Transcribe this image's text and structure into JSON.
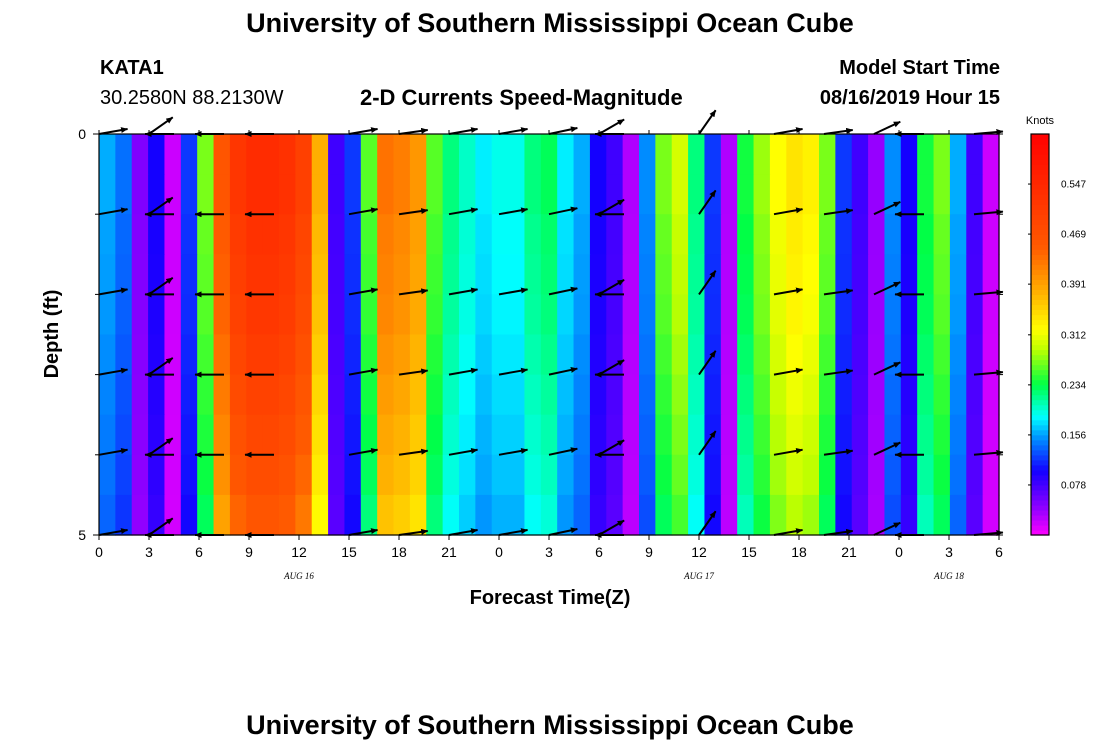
{
  "page": {
    "title_top": "University of Southern Mississippi Ocean Cube",
    "title_bottom": "University of Southern Mississippi Ocean Cube",
    "station": "KATA1",
    "coords": "30.2580N 88.2130W",
    "plot_title": "2-D Currents Speed-Magnitude",
    "model_start_label": "Model Start Time",
    "model_start_value": "08/16/2019 Hour 15"
  },
  "chart_data": {
    "type": "heatmap",
    "title": "2-D Currents Speed-Magnitude",
    "xlabel": "Forecast Time(Z)",
    "ylabel": "Depth (ft)",
    "x_tick_labels": [
      "0",
      "3",
      "6",
      "9",
      "12",
      "15",
      "18",
      "21",
      "0",
      "3",
      "6",
      "9",
      "12",
      "15",
      "18",
      "21",
      "0",
      "3",
      "6"
    ],
    "x_range_hours": [
      0,
      54
    ],
    "date_labels": [
      {
        "label": "AUG 16",
        "hour": 12
      },
      {
        "label": "AUG 17",
        "hour": 36
      },
      {
        "label": "AUG 18",
        "hour": 51
      }
    ],
    "y_tick_labels": [
      "0",
      "5"
    ],
    "y_range_ft": [
      0,
      5
    ],
    "colorbar": {
      "title": "Knots",
      "ticks": [
        "0.547",
        "0.469",
        "0.391",
        "0.312",
        "0.234",
        "0.156",
        "0.078"
      ],
      "tick_values": [
        0.547,
        0.469,
        0.391,
        0.312,
        0.234,
        0.156,
        0.078
      ],
      "vmin": 0.0,
      "vmax": 0.625
    },
    "surface_speed_knots_by_hour": [
      0.16,
      0.14,
      0.05,
      0.1,
      0.02,
      0.12,
      0.27,
      0.46,
      0.52,
      0.54,
      0.54,
      0.53,
      0.5,
      0.38,
      0.08,
      0.12,
      0.26,
      0.43,
      0.42,
      0.4,
      0.26,
      0.22,
      0.2,
      0.18,
      0.19,
      0.19,
      0.22,
      0.23,
      0.18,
      0.16,
      0.1,
      0.08,
      0.03,
      0.15,
      0.27,
      0.3,
      0.22,
      0.12,
      0.03,
      0.24,
      0.28,
      0.32,
      0.34,
      0.33,
      0.27,
      0.12,
      0.08,
      0.04,
      0.15,
      0.1,
      0.24,
      0.27,
      0.16,
      0.08,
      0.02
    ],
    "depth_speed_factor": [
      1.0,
      1.0,
      0.98,
      0.97,
      0.96,
      0.94,
      0.92,
      0.9,
      0.88,
      0.85
    ],
    "vector_depths_ft": [
      0,
      1,
      2,
      3,
      4,
      5
    ],
    "vector_hours": [
      0,
      3,
      4.5,
      7.5,
      10.5,
      15,
      18,
      21,
      24,
      27,
      30,
      31.5,
      36,
      40.5,
      43.5,
      46.5,
      49.5,
      52.5
    ],
    "vector_direction_deg": [
      10,
      35,
      180,
      180,
      180,
      10,
      8,
      10,
      10,
      12,
      30,
      180,
      55,
      10,
      8,
      25,
      180,
      5
    ]
  }
}
